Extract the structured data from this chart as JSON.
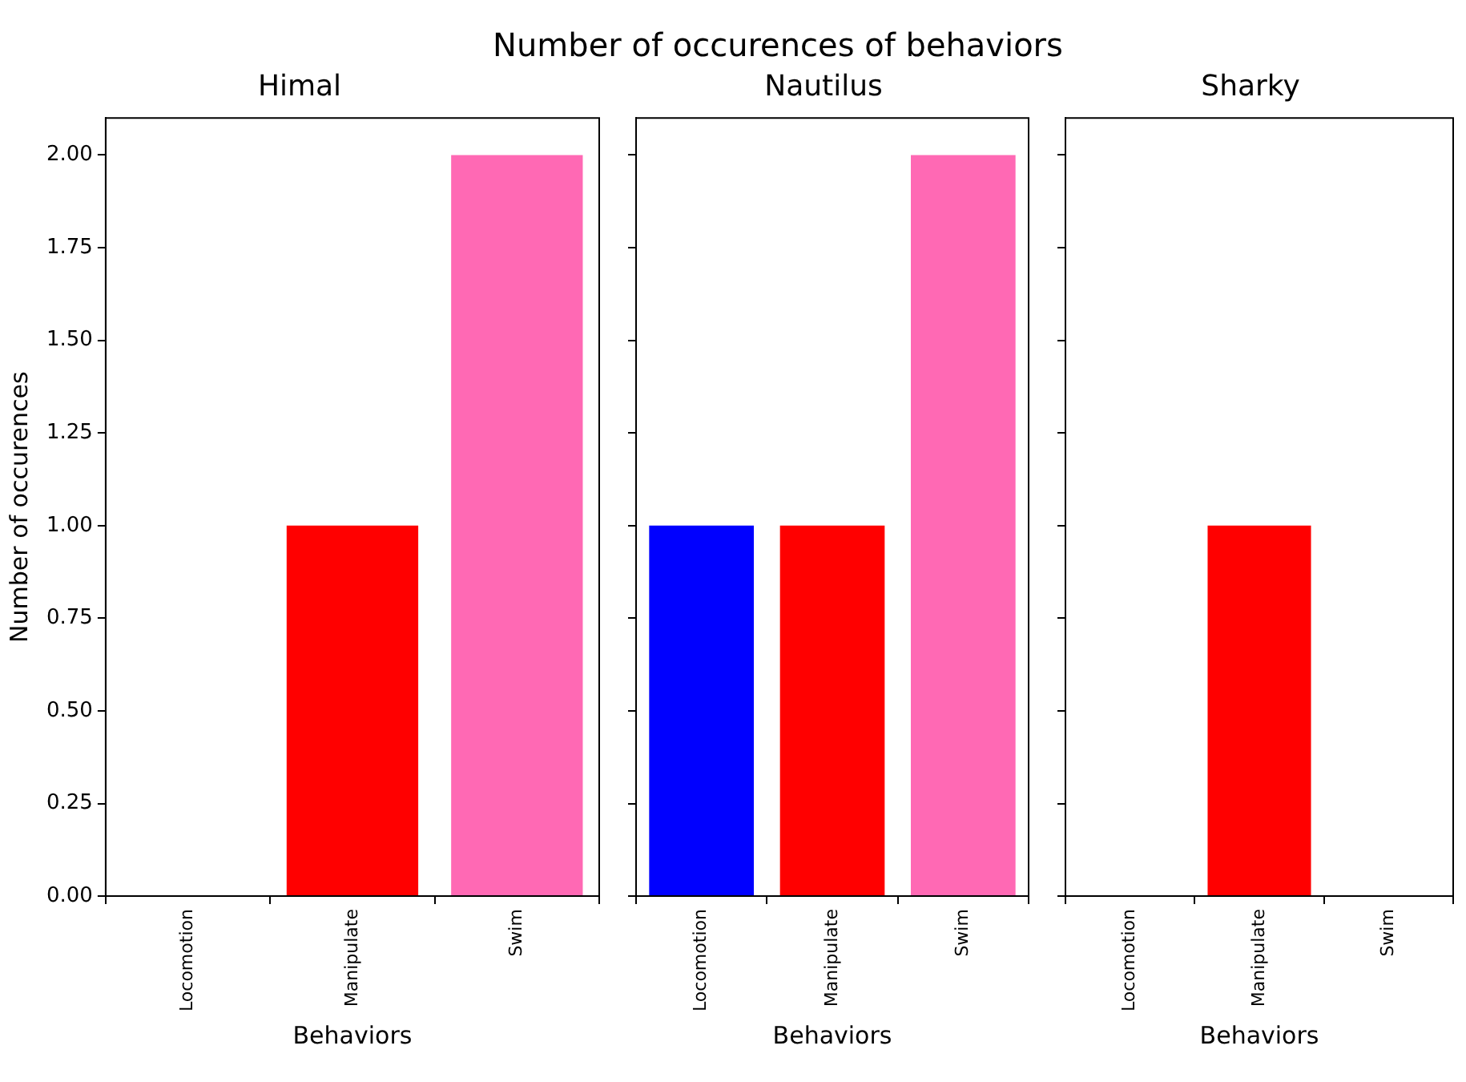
{
  "chart_data": [
    {
      "type": "bar",
      "title": "Himal",
      "annotations": [
        "Number of occurences of behaviors"
      ],
      "xlabel": "Behaviors",
      "ylabel": "Number of occurences",
      "categories": [
        "Locomotion",
        "Manipulate",
        "Swim"
      ],
      "values": [
        0,
        1,
        2
      ],
      "colors": [
        "#0000ff",
        "#ff0000",
        "#ff69b4"
      ],
      "ylim": [
        0,
        2.1
      ],
      "yticks": [
        {
          "value": 0,
          "label": "0.00"
        },
        {
          "value": 0.25,
          "label": "0.25"
        },
        {
          "value": 0.5,
          "label": "0.50"
        },
        {
          "value": 0.75,
          "label": "0.75"
        },
        {
          "value": 1,
          "label": "1.00"
        },
        {
          "value": 1.25,
          "label": "1.25"
        },
        {
          "value": 1.5,
          "label": "1.50"
        },
        {
          "value": 1.75,
          "label": "1.75"
        },
        {
          "value": 2,
          "label": "2.00"
        }
      ],
      "grid": false,
      "legend": false
    },
    {
      "type": "bar",
      "title": "Nautilus",
      "xlabel": "Behaviors",
      "categories": [
        "Locomotion",
        "Manipulate",
        "Swim"
      ],
      "values": [
        1,
        1,
        2
      ],
      "colors": [
        "#0000ff",
        "#ff0000",
        "#ff69b4"
      ],
      "ylim": [
        0,
        2.1
      ],
      "yticks": [
        {
          "value": 0,
          "label": null
        },
        {
          "value": 0.25,
          "label": null
        },
        {
          "value": 0.5,
          "label": null
        },
        {
          "value": 0.75,
          "label": null
        },
        {
          "value": 1,
          "label": null
        },
        {
          "value": 1.25,
          "label": null
        },
        {
          "value": 1.5,
          "label": null
        },
        {
          "value": 1.75,
          "label": null
        },
        {
          "value": 2,
          "label": null
        }
      ],
      "tick_labels": "x",
      "grid": false,
      "legend": false
    },
    {
      "type": "bar",
      "title": "Sharky",
      "xlabel": "Behaviors",
      "categories": [
        "Locomotion",
        "Manipulate",
        "Swim"
      ],
      "values": [
        0,
        1,
        0
      ],
      "colors": [
        "#0000ff",
        "#ff0000",
        "#ff69b4"
      ],
      "ylim": [
        0,
        2.1
      ],
      "yticks": [
        {
          "value": 0,
          "label": null
        },
        {
          "value": 0.25,
          "label": null
        },
        {
          "value": 0.5,
          "label": null
        },
        {
          "value": 0.75,
          "label": null
        },
        {
          "value": 1,
          "label": null
        },
        {
          "value": 1.25,
          "label": null
        },
        {
          "value": 1.5,
          "label": null
        },
        {
          "value": 1.75,
          "label": null
        },
        {
          "value": 2,
          "label": null
        }
      ],
      "tick_labels": "x",
      "grid": false,
      "legend": false
    }
  ]
}
